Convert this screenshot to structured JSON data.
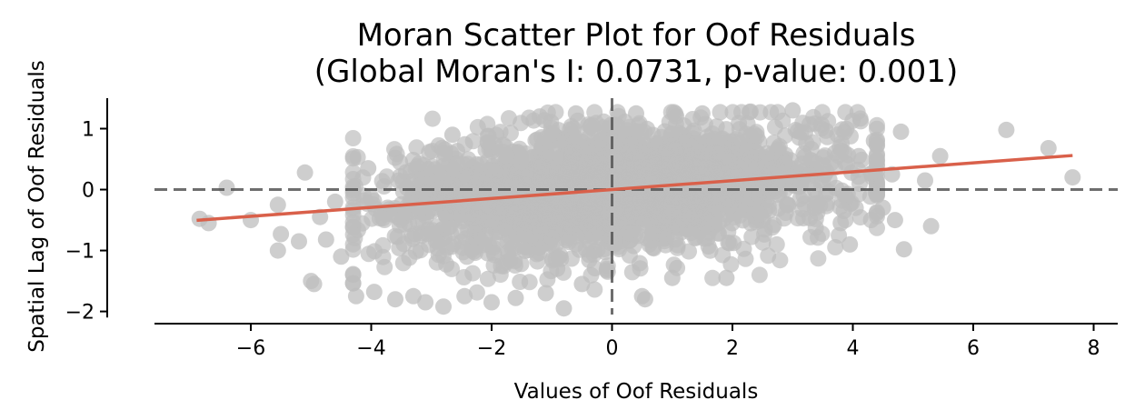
{
  "chart_data": {
    "type": "scatter",
    "title_lines": [
      "Moran Scatter Plot for Oof Residuals",
      "(Global Moran's I: 0.0731, p-value: 0.001)"
    ],
    "xlabel": "Values of Oof Residuals",
    "ylabel": "Spatial Lag of Oof Residuals",
    "xlim": [
      -7.6,
      8.4
    ],
    "ylim": [
      -2.2,
      1.5
    ],
    "xticks": [
      -6,
      -4,
      -2,
      0,
      2,
      4,
      6,
      8
    ],
    "yticks": [
      -2,
      -1,
      0,
      1
    ],
    "xtick_labels": [
      "−6",
      "−4",
      "−2",
      "0",
      "2",
      "4",
      "6",
      "8"
    ],
    "ytick_labels": [
      "−2",
      "−1",
      "0",
      "1"
    ],
    "grid": false,
    "point_color": "#bdbdbd",
    "regression_color": "#d9604a",
    "reference_line_color": "#555555",
    "regression_line": {
      "slope": 0.0731,
      "intercept": 0.0,
      "x_range": [
        -6.9,
        7.65
      ]
    },
    "reference_lines": {
      "x": 0,
      "y": 0
    },
    "point_cloud": {
      "count": 2600,
      "x_center": 0.0,
      "x_spread": 1.9,
      "slope": 0.0731,
      "y_spread": 0.5,
      "seed": 7
    },
    "outliers": [
      {
        "x": -6.85,
        "y": -0.48
      },
      {
        "x": -6.7,
        "y": -0.55
      },
      {
        "x": -6.4,
        "y": 0.03
      },
      {
        "x": -6.0,
        "y": -0.5
      },
      {
        "x": -5.55,
        "y": -0.25
      },
      {
        "x": -5.5,
        "y": -0.73
      },
      {
        "x": -5.55,
        "y": -1.0
      },
      {
        "x": -5.1,
        "y": 0.28
      },
      {
        "x": -5.2,
        "y": -0.85
      },
      {
        "x": -5.0,
        "y": -1.5
      },
      {
        "x": -4.95,
        "y": -1.55
      },
      {
        "x": -4.85,
        "y": -0.45
      },
      {
        "x": -4.75,
        "y": -0.82
      },
      {
        "x": -4.6,
        "y": -0.2
      },
      {
        "x": -4.5,
        "y": -1.1
      },
      {
        "x": -4.3,
        "y": -1.4
      },
      {
        "x": -4.25,
        "y": -1.75
      },
      {
        "x": -4.05,
        "y": 0.35
      },
      {
        "x": -3.95,
        "y": -1.68
      },
      {
        "x": -3.6,
        "y": -1.8
      },
      {
        "x": -3.3,
        "y": -1.75
      },
      {
        "x": -3.1,
        "y": -1.85
      },
      {
        "x": -2.8,
        "y": -1.92
      },
      {
        "x": -2.45,
        "y": -1.75
      },
      {
        "x": -2.0,
        "y": -1.85
      },
      {
        "x": -1.6,
        "y": -1.78
      },
      {
        "x": -1.1,
        "y": -1.7
      },
      {
        "x": -0.8,
        "y": -1.95
      },
      {
        "x": -0.5,
        "y": -1.55
      },
      {
        "x": 0.55,
        "y": -1.8
      },
      {
        "x": 0.5,
        "y": -1.75
      },
      {
        "x": 1.0,
        "y": -1.45
      },
      {
        "x": 1.9,
        "y": -1.45
      },
      {
        "x": 3.8,
        "y": -0.55
      },
      {
        "x": 3.85,
        "y": -0.35
      },
      {
        "x": 3.95,
        "y": -0.9
      },
      {
        "x": 4.1,
        "y": 0.55
      },
      {
        "x": 4.35,
        "y": 0.8
      },
      {
        "x": 4.4,
        "y": 0.0
      },
      {
        "x": 4.5,
        "y": -0.3
      },
      {
        "x": 4.65,
        "y": 0.25
      },
      {
        "x": 4.7,
        "y": -0.5
      },
      {
        "x": 4.8,
        "y": 0.95
      },
      {
        "x": 4.85,
        "y": -0.98
      },
      {
        "x": 5.2,
        "y": 0.15
      },
      {
        "x": 5.3,
        "y": -0.6
      },
      {
        "x": 5.45,
        "y": 0.55
      },
      {
        "x": 6.55,
        "y": 0.98
      },
      {
        "x": 7.25,
        "y": 0.68
      },
      {
        "x": 7.65,
        "y": 0.2
      },
      {
        "x": 3.0,
        "y": 1.3
      },
      {
        "x": 2.3,
        "y": 1.28
      },
      {
        "x": -2.65,
        "y": 0.9
      },
      {
        "x": -1.2,
        "y": 1.2
      },
      {
        "x": -0.6,
        "y": 1.25
      },
      {
        "x": 0.4,
        "y": 1.25
      },
      {
        "x": 1.5,
        "y": 1.25
      }
    ]
  }
}
